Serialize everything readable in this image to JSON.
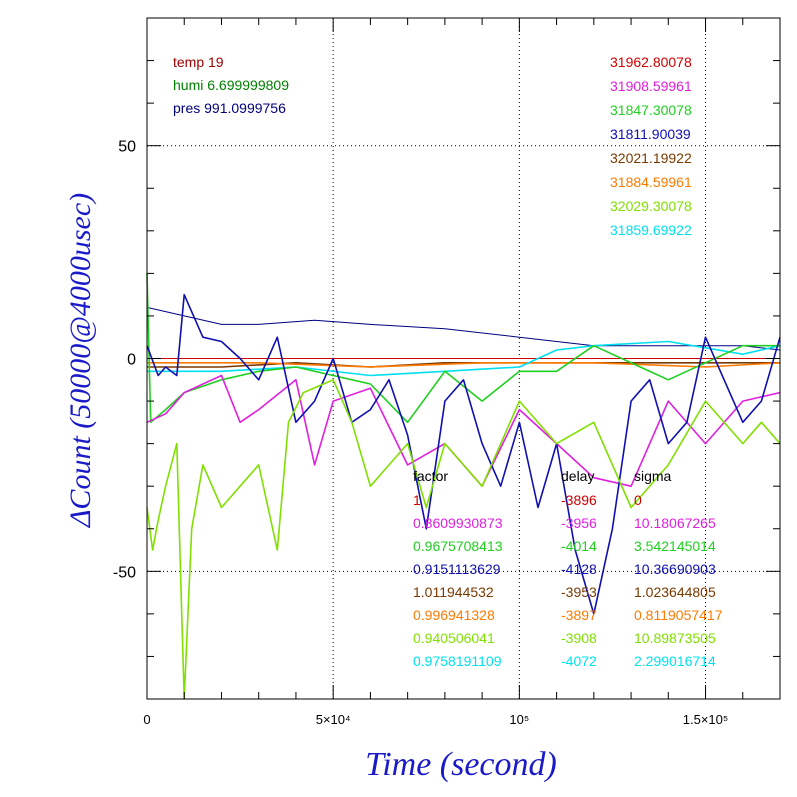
{
  "chart_data": {
    "type": "line",
    "xlabel": "Time (second)",
    "ylabel": "ΔCount (50000@4000usec)",
    "xlim": [
      0,
      170000
    ],
    "ylim": [
      -80,
      80
    ],
    "grid": true,
    "x_ticks": [
      {
        "value": 0,
        "label": "0"
      },
      {
        "value": 50000,
        "label": "5×10⁴"
      },
      {
        "value": 100000,
        "label": "10⁵"
      },
      {
        "value": 150000,
        "label": "1.5×10⁵"
      }
    ],
    "y_ticks": [
      {
        "value": 50,
        "label": "50"
      },
      {
        "value": 0,
        "label": "0"
      },
      {
        "value": -50,
        "label": "-50"
      }
    ],
    "env": [
      {
        "text": "temp 19",
        "color": "#a00000"
      },
      {
        "text": "humi 6.699999809",
        "color": "#008000"
      },
      {
        "text": "pres 991.0999756",
        "color": "#000080"
      }
    ],
    "means": [
      {
        "text": "31962.80078",
        "color": "#d00000"
      },
      {
        "text": "31908.59961",
        "color": "#e020e0"
      },
      {
        "text": "31847.30078",
        "color": "#20d020"
      },
      {
        "text": "31811.90039",
        "color": "#1010b0"
      },
      {
        "text": "32021.19922",
        "color": "#7a3a00"
      },
      {
        "text": "31884.59961",
        "color": "#ff7a00"
      },
      {
        "text": "32029.30078",
        "color": "#80e000"
      },
      {
        "text": "31859.69922",
        "color": "#00e0f0"
      }
    ],
    "table_headers": {
      "factor": "factor",
      "delay": "delay",
      "sigma": "sigma"
    },
    "table": [
      {
        "factor": "1",
        "delay": "-3896",
        "sigma": "0",
        "color": "#d00000"
      },
      {
        "factor": "0.8609930873",
        "delay": "-3956",
        "sigma": "10.18067265",
        "color": "#e020e0"
      },
      {
        "factor": "0.9675708413",
        "delay": "-4014",
        "sigma": "3.542145014",
        "color": "#20d020"
      },
      {
        "factor": "0.9151113629",
        "delay": "-4128",
        "sigma": "10.36690903",
        "color": "#1010b0"
      },
      {
        "factor": "1.011944532",
        "delay": "-3953",
        "sigma": "1.023644805",
        "color": "#7a3a00"
      },
      {
        "factor": "0.996941328",
        "delay": "-3897",
        "sigma": "0.8119057417",
        "color": "#ff7a00"
      },
      {
        "factor": "0.940506041",
        "delay": "-3908",
        "sigma": "10.89873505",
        "color": "#80e000"
      },
      {
        "factor": "0.9758191109",
        "delay": "-4072",
        "sigma": "2.299016714",
        "color": "#00e0f0"
      }
    ],
    "series": [
      {
        "color": "#d00000",
        "values": [
          [
            0,
            0
          ],
          [
            170000,
            0
          ]
        ]
      },
      {
        "color": "#000080",
        "values": [
          [
            0,
            12
          ],
          [
            10000,
            10
          ],
          [
            20000,
            8
          ],
          [
            30000,
            8
          ],
          [
            45000,
            9
          ],
          [
            60000,
            8
          ],
          [
            80000,
            7
          ],
          [
            100000,
            5
          ],
          [
            120000,
            3
          ],
          [
            140000,
            3
          ],
          [
            160000,
            3
          ],
          [
            170000,
            2
          ]
        ]
      },
      {
        "color": "#7a3a00",
        "values": [
          [
            0,
            -2
          ],
          [
            20000,
            -2
          ],
          [
            40000,
            -1
          ],
          [
            60000,
            -2
          ],
          [
            80000,
            -1
          ],
          [
            100000,
            -1
          ],
          [
            120000,
            -1
          ],
          [
            140000,
            -1
          ],
          [
            160000,
            -1
          ],
          [
            170000,
            -1
          ]
        ]
      },
      {
        "color": "#ff7a00",
        "values": [
          [
            0,
            -1
          ],
          [
            30000,
            -1
          ],
          [
            60000,
            -2
          ],
          [
            90000,
            -1
          ],
          [
            120000,
            -1
          ],
          [
            150000,
            -2
          ],
          [
            170000,
            -1
          ]
        ]
      },
      {
        "color": "#00e0f0",
        "values": [
          [
            0,
            -3
          ],
          [
            20000,
            -3
          ],
          [
            40000,
            -2
          ],
          [
            60000,
            -4
          ],
          [
            80000,
            -3
          ],
          [
            100000,
            -2
          ],
          [
            110000,
            2
          ],
          [
            120000,
            3
          ],
          [
            140000,
            4
          ],
          [
            160000,
            1
          ],
          [
            170000,
            3
          ]
        ]
      },
      {
        "color": "#20d020",
        "values": [
          [
            0,
            20
          ],
          [
            1000,
            -15
          ],
          [
            5000,
            -12
          ],
          [
            10000,
            -8
          ],
          [
            20000,
            -5
          ],
          [
            30000,
            -3
          ],
          [
            40000,
            -2
          ],
          [
            60000,
            -6
          ],
          [
            70000,
            -15
          ],
          [
            80000,
            -3
          ],
          [
            90000,
            -10
          ],
          [
            100000,
            -3
          ],
          [
            110000,
            -3
          ],
          [
            120000,
            3
          ],
          [
            140000,
            -5
          ],
          [
            160000,
            3
          ],
          [
            170000,
            3
          ]
        ]
      },
      {
        "color": "#e020e0",
        "values": [
          [
            0,
            -15
          ],
          [
            5000,
            -13
          ],
          [
            10000,
            -8
          ],
          [
            20000,
            -4
          ],
          [
            25000,
            -15
          ],
          [
            30000,
            -12
          ],
          [
            40000,
            -5
          ],
          [
            45000,
            -25
          ],
          [
            50000,
            -10
          ],
          [
            60000,
            -7
          ],
          [
            70000,
            -25
          ],
          [
            80000,
            -20
          ],
          [
            90000,
            -30
          ],
          [
            100000,
            -12
          ],
          [
            110000,
            -20
          ],
          [
            120000,
            -28
          ],
          [
            130000,
            -30
          ],
          [
            140000,
            -10
          ],
          [
            150000,
            -20
          ],
          [
            160000,
            -10
          ],
          [
            170000,
            -8
          ]
        ]
      },
      {
        "color": "#1010b0",
        "values": [
          [
            0,
            3
          ],
          [
            3000,
            -4
          ],
          [
            5000,
            -2
          ],
          [
            8000,
            -4
          ],
          [
            10000,
            15
          ],
          [
            15000,
            5
          ],
          [
            20000,
            4
          ],
          [
            25000,
            0
          ],
          [
            30000,
            -5
          ],
          [
            35000,
            5
          ],
          [
            40000,
            -15
          ],
          [
            45000,
            -10
          ],
          [
            50000,
            0
          ],
          [
            55000,
            -15
          ],
          [
            60000,
            -12
          ],
          [
            65000,
            -5
          ],
          [
            70000,
            -18
          ],
          [
            75000,
            -40
          ],
          [
            80000,
            -10
          ],
          [
            85000,
            -5
          ],
          [
            90000,
            -20
          ],
          [
            95000,
            -30
          ],
          [
            100000,
            -15
          ],
          [
            105000,
            -35
          ],
          [
            110000,
            -20
          ],
          [
            115000,
            -45
          ],
          [
            120000,
            -60
          ],
          [
            125000,
            -40
          ],
          [
            130000,
            -10
          ],
          [
            135000,
            -5
          ],
          [
            140000,
            -20
          ],
          [
            145000,
            -15
          ],
          [
            150000,
            5
          ],
          [
            155000,
            -5
          ],
          [
            160000,
            -15
          ],
          [
            165000,
            -10
          ],
          [
            170000,
            5
          ]
        ]
      },
      {
        "color": "#80e000",
        "values": [
          [
            0,
            -35
          ],
          [
            1500,
            -45
          ],
          [
            3000,
            -38
          ],
          [
            5000,
            -30
          ],
          [
            8000,
            -20
          ],
          [
            10000,
            -80
          ],
          [
            12000,
            -40
          ],
          [
            15000,
            -25
          ],
          [
            20000,
            -35
          ],
          [
            25000,
            -30
          ],
          [
            30000,
            -25
          ],
          [
            35000,
            -45
          ],
          [
            38000,
            -15
          ],
          [
            42000,
            -8
          ],
          [
            50000,
            -5
          ],
          [
            55000,
            -15
          ],
          [
            60000,
            -30
          ],
          [
            70000,
            -20
          ],
          [
            75000,
            -35
          ],
          [
            80000,
            -20
          ],
          [
            90000,
            -30
          ],
          [
            100000,
            -10
          ],
          [
            110000,
            -20
          ],
          [
            120000,
            -15
          ],
          [
            130000,
            -35
          ],
          [
            140000,
            -25
          ],
          [
            150000,
            -10
          ],
          [
            160000,
            -20
          ],
          [
            165000,
            -15
          ],
          [
            170000,
            -20
          ]
        ]
      }
    ]
  }
}
